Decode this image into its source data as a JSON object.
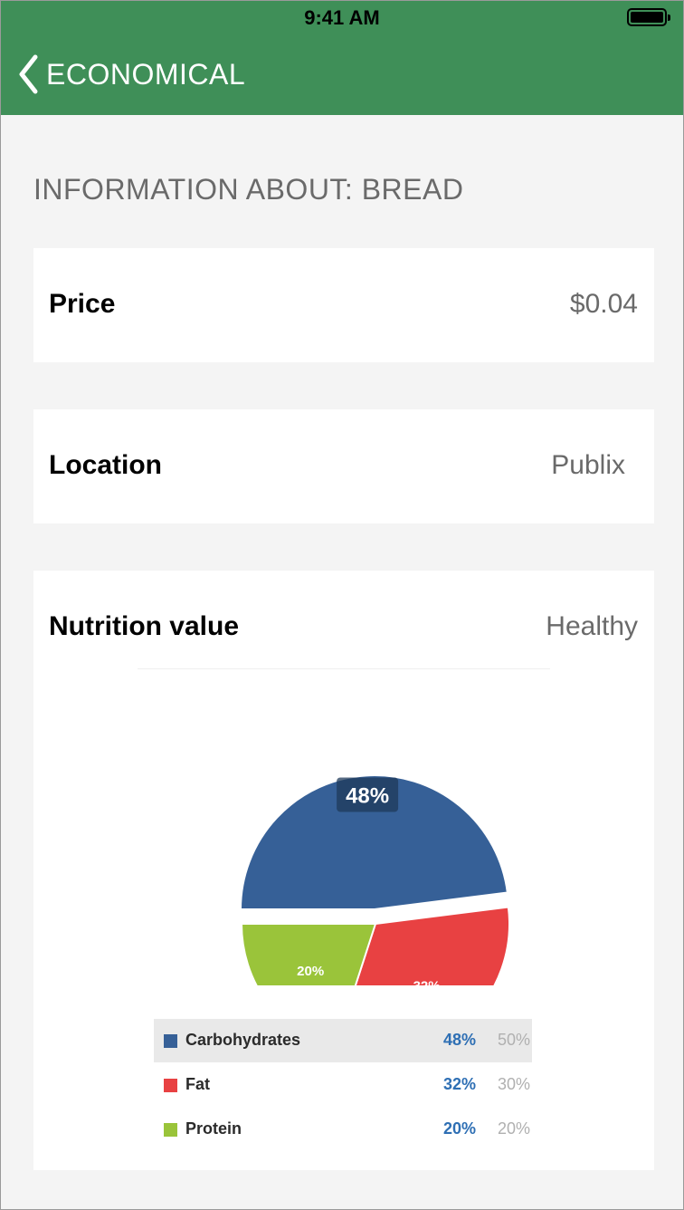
{
  "status_bar": {
    "time": "9:41 AM"
  },
  "nav": {
    "back_label": "ECONOMICAL"
  },
  "section": {
    "title": "INFORMATION ABOUT: BREAD"
  },
  "rows": {
    "price": {
      "label": "Price",
      "value": "$0.04"
    },
    "location": {
      "label": "Location",
      "value": "Publix"
    },
    "nutrition": {
      "label": "Nutrition value",
      "value": "Healthy"
    }
  },
  "chart_data": {
    "type": "pie",
    "title": "",
    "slices": [
      {
        "name": "Carbohydrates",
        "value": 48,
        "label": "48%",
        "target": "50%",
        "color": "#366097"
      },
      {
        "name": "Fat",
        "value": 32,
        "label": "32%",
        "target": "30%",
        "color": "#e84142"
      },
      {
        "name": "Protein",
        "value": 20,
        "label": "20%",
        "target": "20%",
        "color": "#9ac43a"
      }
    ],
    "legend_position": "bottom",
    "highlighted": "Carbohydrates"
  },
  "colors": {
    "nav_bg": "#3f8f58",
    "page_bg": "#f4f4f4",
    "legend_value": "#2e6fb4"
  }
}
